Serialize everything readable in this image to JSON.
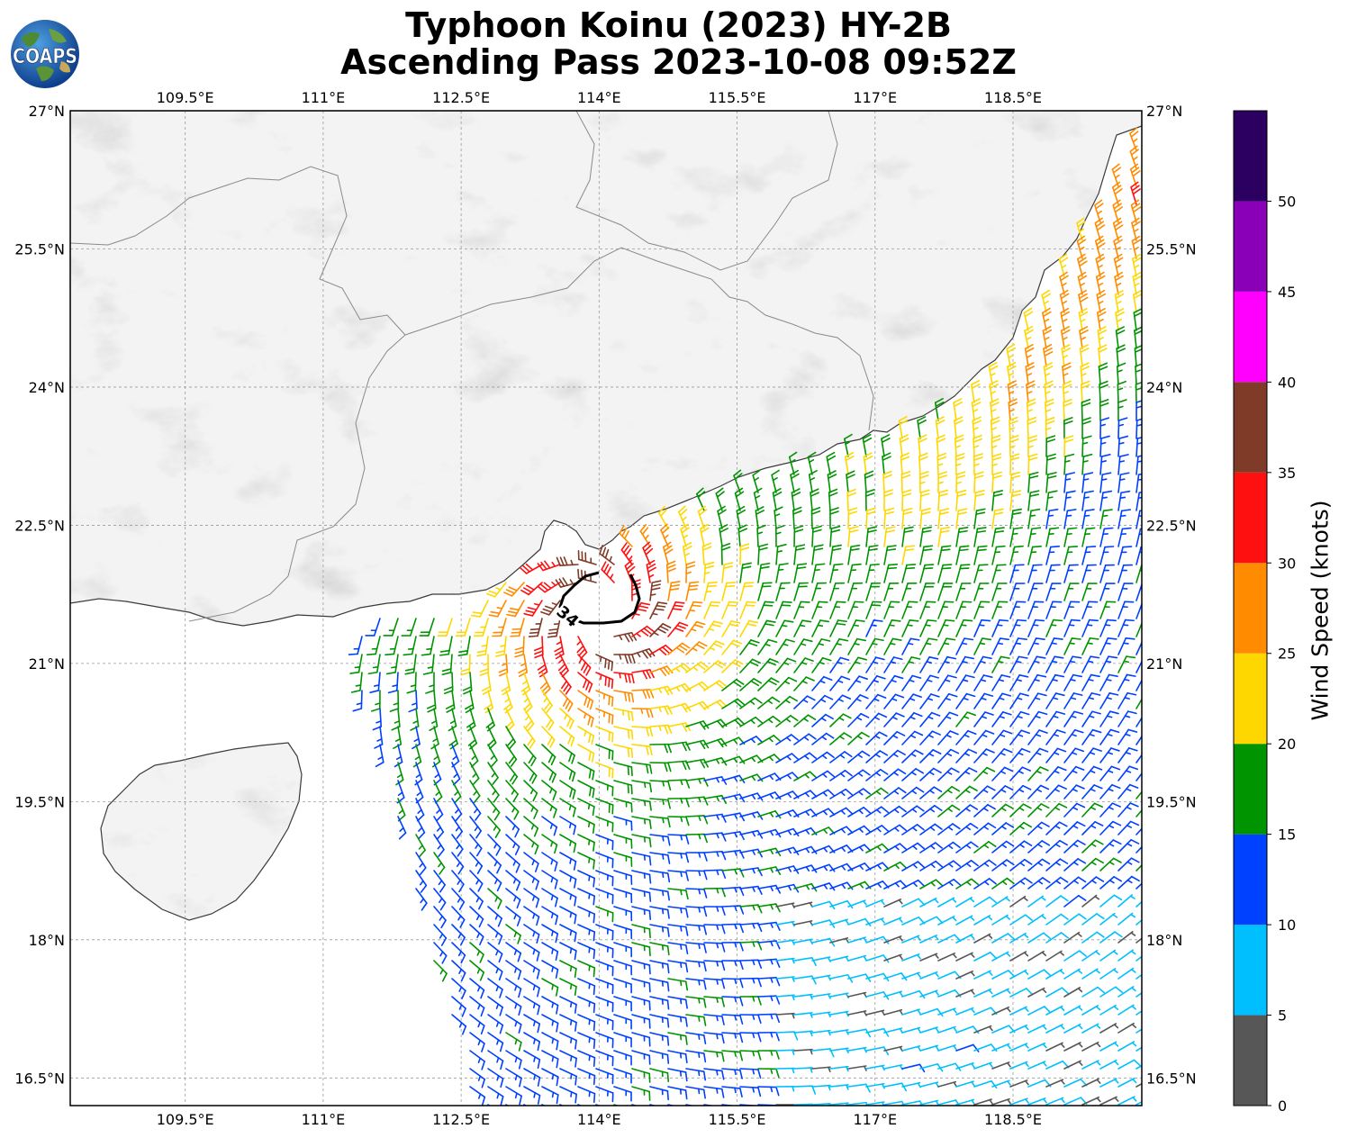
{
  "title": {
    "line1": "Typhoon Koinu (2023) HY-2B",
    "line2": "Ascending Pass 2023-10-08 09:52Z"
  },
  "logo": {
    "text": "COAPS",
    "icon": "globe-logo-icon"
  },
  "map": {
    "lon_range": [
      108.25,
      119.9
    ],
    "lat_range": [
      16.2,
      27.0
    ],
    "lon_ticks": [
      {
        "value": 109.5,
        "label": "109.5°E"
      },
      {
        "value": 111.0,
        "label": "111°E"
      },
      {
        "value": 112.5,
        "label": "112.5°E"
      },
      {
        "value": 114.0,
        "label": "114°E"
      },
      {
        "value": 115.5,
        "label": "115.5°E"
      },
      {
        "value": 117.0,
        "label": "117°E"
      },
      {
        "value": 118.5,
        "label": "118.5°E"
      }
    ],
    "lat_ticks": [
      {
        "value": 27.0,
        "label": "27°N"
      },
      {
        "value": 25.5,
        "label": "25.5°N"
      },
      {
        "value": 24.0,
        "label": "24°N"
      },
      {
        "value": 22.5,
        "label": "22.5°N"
      },
      {
        "value": 21.0,
        "label": "21°N"
      },
      {
        "value": 19.5,
        "label": "19.5°N"
      },
      {
        "value": 18.0,
        "label": "18°N"
      },
      {
        "value": 16.5,
        "label": "16.5°N"
      }
    ],
    "gridlines": "dashed",
    "storm_center": {
      "lon": 114.0,
      "lat": 21.55
    },
    "contour": {
      "label": "34",
      "units": "knots"
    }
  },
  "colorbar": {
    "label": "Wind Speed (knots)",
    "ticks": [
      "0",
      "5",
      "10",
      "15",
      "20",
      "25",
      "30",
      "35",
      "40",
      "45",
      "50"
    ],
    "bins": [
      {
        "min": 0,
        "max": 5,
        "color": "#575757"
      },
      {
        "min": 5,
        "max": 10,
        "color": "#00bfff"
      },
      {
        "min": 10,
        "max": 15,
        "color": "#0040ff"
      },
      {
        "min": 15,
        "max": 20,
        "color": "#009400"
      },
      {
        "min": 20,
        "max": 25,
        "color": "#ffd700"
      },
      {
        "min": 25,
        "max": 30,
        "color": "#ff8c00"
      },
      {
        "min": 30,
        "max": 35,
        "color": "#ff1010"
      },
      {
        "min": 35,
        "max": 40,
        "color": "#7f3b27"
      },
      {
        "min": 40,
        "max": 45,
        "color": "#ff00ff"
      },
      {
        "min": 45,
        "max": 50,
        "color": "#8a00b8"
      },
      {
        "min": 50,
        "max": 55,
        "color": "#2b0060"
      }
    ]
  }
}
